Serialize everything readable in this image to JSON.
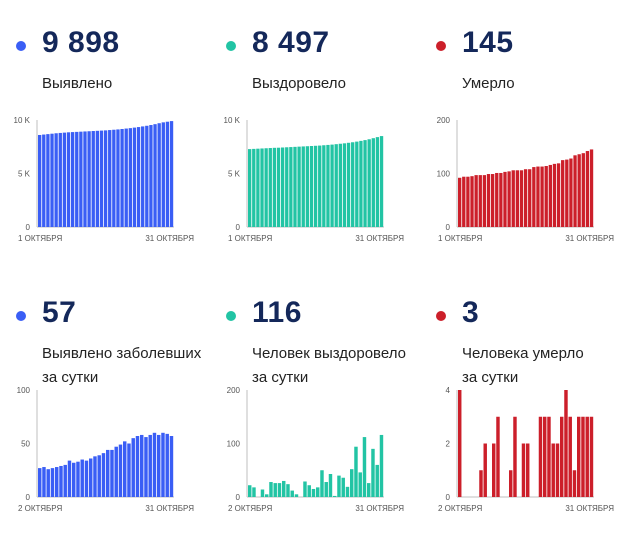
{
  "colors": {
    "blue": "#3a5ef5",
    "teal": "#22c4a4",
    "red": "#cc1f2a",
    "dark": "#14285a"
  },
  "panels": [
    {
      "number": "9 898",
      "label_lines": [
        "Выявлено"
      ],
      "color": "#3a5ef5",
      "chart_data": {
        "type": "bar",
        "title": "Выявлено",
        "y_ticks": [
          "0",
          "5 K",
          "10 K"
        ],
        "ylim": [
          0,
          10000
        ],
        "x_labels": [
          "1 ОКТЯБРЯ",
          "31 ОКТЯБРЯ"
        ],
        "values": [
          8600,
          8640,
          8680,
          8720,
          8760,
          8790,
          8820,
          8850,
          8870,
          8890,
          8910,
          8930,
          8950,
          8970,
          8990,
          9010,
          9030,
          9060,
          9090,
          9120,
          9160,
          9200,
          9240,
          9290,
          9340,
          9400,
          9460,
          9530,
          9610,
          9700,
          9780,
          9840,
          9898
        ]
      }
    },
    {
      "number": "8 497",
      "label_lines": [
        "Выздоровело"
      ],
      "color": "#22c4a4",
      "chart_data": {
        "type": "bar",
        "title": "Выздоровело",
        "y_ticks": [
          "0",
          "5 K",
          "10 K"
        ],
        "ylim": [
          0,
          10000
        ],
        "x_labels": [
          "1 ОКТЯБРЯ",
          "31 ОКТЯБРЯ"
        ],
        "values": [
          7280,
          7300,
          7320,
          7340,
          7360,
          7380,
          7400,
          7410,
          7430,
          7450,
          7470,
          7490,
          7510,
          7530,
          7550,
          7570,
          7590,
          7610,
          7640,
          7670,
          7700,
          7740,
          7780,
          7820,
          7870,
          7920,
          7980,
          8050,
          8120,
          8200,
          8300,
          8400,
          8497
        ]
      }
    },
    {
      "number": "145",
      "label_lines": [
        "Умерло"
      ],
      "color": "#cc1f2a",
      "chart_data": {
        "type": "bar",
        "title": "Умерло",
        "y_ticks": [
          "0",
          "100",
          "200"
        ],
        "ylim": [
          0,
          200
        ],
        "x_labels": [
          "1 ОКТЯБРЯ",
          "31 ОКТЯБРЯ"
        ],
        "values": [
          92,
          94,
          94,
          95,
          97,
          97,
          97,
          99,
          99,
          101,
          101,
          103,
          104,
          106,
          106,
          106,
          108,
          108,
          112,
          113,
          113,
          114,
          116,
          118,
          119,
          125,
          126,
          128,
          134,
          136,
          138,
          142,
          145
        ]
      }
    },
    {
      "number": "57",
      "label_lines": [
        "Выявлено заболевших",
        "за сутки"
      ],
      "color": "#3a5ef5",
      "chart_data": {
        "type": "bar",
        "title": "Выявлено заболевших за сутки",
        "y_ticks": [
          "0",
          "50",
          "100"
        ],
        "ylim": [
          0,
          100
        ],
        "x_labels": [
          "2 ОКТЯБРЯ",
          "31 ОКТЯБРЯ"
        ],
        "values": [
          27,
          28,
          26,
          27,
          28,
          29,
          30,
          34,
          32,
          33,
          35,
          34,
          36,
          38,
          39,
          41,
          44,
          44,
          47,
          49,
          52,
          50,
          55,
          57,
          58,
          56,
          58,
          60,
          58,
          60,
          59,
          57
        ]
      }
    },
    {
      "number": "116",
      "label_lines": [
        "Человек выздоровело",
        "за сутки"
      ],
      "color": "#22c4a4",
      "chart_data": {
        "type": "bar",
        "title": "Человек выздоровело за сутки",
        "y_ticks": [
          "0",
          "100",
          "200"
        ],
        "ylim": [
          0,
          200
        ],
        "x_labels": [
          "2 ОКТЯБРЯ",
          "31 ОКТЯБРЯ"
        ],
        "values": [
          22,
          18,
          0,
          14,
          5,
          28,
          26,
          26,
          30,
          24,
          12,
          5,
          0,
          29,
          22,
          15,
          18,
          50,
          28,
          43,
          2,
          40,
          36,
          19,
          52,
          94,
          46,
          112,
          26,
          90,
          60,
          116
        ]
      }
    },
    {
      "number": "3",
      "label_lines": [
        "Человека умерло",
        "за сутки"
      ],
      "color": "#cc1f2a",
      "chart_data": {
        "type": "bar",
        "title": "Человека умерло за сутки",
        "y_ticks": [
          "0",
          "2",
          "4"
        ],
        "ylim": [
          0,
          4
        ],
        "x_labels": [
          "2 ОКТЯБРЯ",
          "31 ОКТЯБРЯ"
        ],
        "values": [
          4,
          0,
          0,
          0,
          0,
          1,
          2,
          0,
          2,
          3,
          0,
          0,
          1,
          3,
          0,
          2,
          2,
          0,
          0,
          3,
          3,
          3,
          2,
          2,
          3,
          4,
          3,
          1,
          3,
          3,
          3,
          3
        ]
      }
    }
  ]
}
